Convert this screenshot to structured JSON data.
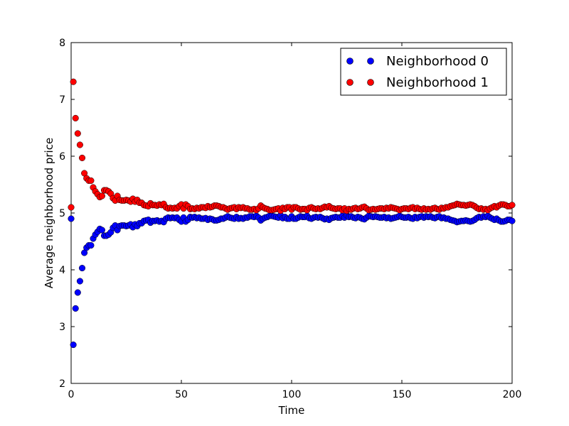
{
  "chart_data": {
    "type": "scatter",
    "title": "",
    "xlabel": "Time",
    "ylabel": "Average neighborhood price",
    "xlim": [
      0,
      200
    ],
    "ylim": [
      2,
      8
    ],
    "xticks": [
      0,
      50,
      100,
      150,
      200
    ],
    "yticks": [
      2,
      3,
      4,
      5,
      6,
      7,
      8
    ],
    "grid": false,
    "legend_position": "top-right",
    "series": [
      {
        "name": "Neighborhood 0",
        "color": "#0000ff",
        "x_start": 0,
        "x_step": 1,
        "values": [
          4.9,
          2.68,
          3.32,
          3.6,
          3.8,
          4.03,
          4.3,
          4.39,
          4.43,
          4.43,
          4.55,
          4.62,
          4.67,
          4.72,
          4.7,
          4.6,
          4.6,
          4.62,
          4.66,
          4.74,
          4.78,
          4.7,
          4.77,
          4.78,
          4.78,
          4.77,
          4.78,
          4.8,
          4.75,
          4.8,
          4.77,
          4.82,
          4.82,
          4.86,
          4.87,
          4.88,
          4.83,
          4.86,
          4.86,
          4.87,
          4.85,
          4.86,
          4.84,
          4.9,
          4.92,
          4.91,
          4.92,
          4.91,
          4.92,
          4.88,
          4.85,
          4.92,
          4.85,
          4.88,
          4.93,
          4.92,
          4.93,
          4.91,
          4.92,
          4.9,
          4.9,
          4.91,
          4.88,
          4.9,
          4.89,
          4.87,
          4.87,
          4.88,
          4.9,
          4.9,
          4.92,
          4.94,
          4.92,
          4.91,
          4.9,
          4.93,
          4.9,
          4.91,
          4.9,
          4.92,
          4.92,
          4.94,
          4.94,
          4.93,
          4.95,
          4.92,
          4.87,
          4.9,
          4.92,
          4.93,
          4.95,
          4.95,
          4.94,
          4.93,
          4.92,
          4.96,
          4.91,
          4.93,
          4.9,
          4.9,
          4.94,
          4.9,
          4.9,
          4.92,
          4.94,
          4.93,
          4.93,
          4.95,
          4.91,
          4.9,
          4.92,
          4.93,
          4.92,
          4.93,
          4.91,
          4.89,
          4.9,
          4.88,
          4.91,
          4.92,
          4.93,
          4.92,
          4.92,
          4.95,
          4.92,
          4.96,
          4.93,
          4.94,
          4.92,
          4.91,
          4.93,
          4.92,
          4.9,
          4.89,
          4.92,
          4.95,
          4.94,
          4.93,
          4.94,
          4.93,
          4.92,
          4.92,
          4.93,
          4.91,
          4.92,
          4.9,
          4.91,
          4.92,
          4.93,
          4.95,
          4.93,
          4.92,
          4.92,
          4.93,
          4.91,
          4.9,
          4.93,
          4.91,
          4.93,
          4.94,
          4.92,
          4.94,
          4.93,
          4.94,
          4.92,
          4.91,
          4.93,
          4.94,
          4.91,
          4.92,
          4.9,
          4.9,
          4.88,
          4.87,
          4.86,
          4.84,
          4.85,
          4.86,
          4.86,
          4.87,
          4.86,
          4.85,
          4.86,
          4.88,
          4.91,
          4.93,
          4.92,
          4.94,
          4.93,
          4.95,
          4.92,
          4.9,
          4.88,
          4.9,
          4.87,
          4.85,
          4.85,
          4.86,
          4.88,
          4.88,
          4.86
        ]
      },
      {
        "name": "Neighborhood 1",
        "color": "#ff0000",
        "x_start": 0,
        "x_step": 1,
        "values": [
          5.1,
          7.31,
          6.67,
          6.4,
          6.2,
          5.97,
          5.7,
          5.61,
          5.57,
          5.57,
          5.45,
          5.38,
          5.33,
          5.28,
          5.3,
          5.4,
          5.4,
          5.38,
          5.34,
          5.26,
          5.22,
          5.3,
          5.23,
          5.22,
          5.22,
          5.23,
          5.22,
          5.2,
          5.25,
          5.2,
          5.23,
          5.18,
          5.18,
          5.14,
          5.13,
          5.12,
          5.17,
          5.14,
          5.14,
          5.13,
          5.15,
          5.14,
          5.16,
          5.1,
          5.08,
          5.09,
          5.08,
          5.09,
          5.08,
          5.12,
          5.15,
          5.08,
          5.15,
          5.12,
          5.07,
          5.08,
          5.07,
          5.09,
          5.08,
          5.1,
          5.1,
          5.09,
          5.12,
          5.1,
          5.11,
          5.13,
          5.13,
          5.12,
          5.1,
          5.1,
          5.08,
          5.06,
          5.08,
          5.09,
          5.1,
          5.07,
          5.1,
          5.09,
          5.1,
          5.08,
          5.08,
          5.06,
          5.06,
          5.07,
          5.05,
          5.08,
          5.13,
          5.1,
          5.08,
          5.07,
          5.05,
          5.05,
          5.06,
          5.07,
          5.08,
          5.04,
          5.09,
          5.07,
          5.1,
          5.1,
          5.06,
          5.1,
          5.1,
          5.08,
          5.06,
          5.07,
          5.07,
          5.05,
          5.09,
          5.1,
          5.08,
          5.07,
          5.08,
          5.07,
          5.09,
          5.11,
          5.1,
          5.12,
          5.09,
          5.08,
          5.07,
          5.08,
          5.08,
          5.05,
          5.08,
          5.04,
          5.07,
          5.06,
          5.08,
          5.09,
          5.07,
          5.08,
          5.1,
          5.11,
          5.08,
          5.05,
          5.06,
          5.07,
          5.06,
          5.07,
          5.08,
          5.08,
          5.07,
          5.09,
          5.08,
          5.1,
          5.09,
          5.08,
          5.07,
          5.05,
          5.07,
          5.08,
          5.08,
          5.07,
          5.09,
          5.1,
          5.07,
          5.09,
          5.07,
          5.06,
          5.08,
          5.06,
          5.07,
          5.06,
          5.08,
          5.09,
          5.07,
          5.06,
          5.09,
          5.08,
          5.1,
          5.1,
          5.12,
          5.13,
          5.14,
          5.16,
          5.15,
          5.14,
          5.14,
          5.13,
          5.14,
          5.15,
          5.14,
          5.12,
          5.09,
          5.07,
          5.08,
          5.06,
          5.07,
          5.05,
          5.08,
          5.1,
          5.12,
          5.1,
          5.13,
          5.15,
          5.15,
          5.14,
          5.12,
          5.12,
          5.14
        ]
      }
    ]
  }
}
